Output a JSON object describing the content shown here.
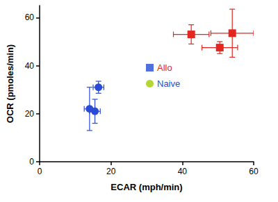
{
  "chart_data": {
    "type": "scatter",
    "x_label": "ECAR (mph/min)",
    "y_label": "OCR (pmoles/min)",
    "xlim": [
      0,
      60
    ],
    "xticks": [
      0,
      20,
      40,
      60
    ],
    "ylim": [
      0,
      65
    ],
    "yticks": [
      0,
      20,
      40,
      60
    ],
    "grid": false,
    "legend": "center",
    "series": [
      {
        "name": "Allo",
        "color": "#e3261f",
        "marker": "square",
        "x": [
          42.5,
          54,
          50.5
        ],
        "y": [
          53,
          53.5,
          47.5
        ],
        "x_err": [
          5,
          6,
          5
        ],
        "y_err": [
          4,
          10,
          2.5
        ]
      },
      {
        "name": "Naive",
        "color": "#2a4bd7",
        "marker": "circle",
        "x": [
          14,
          15.5,
          16.5
        ],
        "y": [
          22,
          21,
          31
        ],
        "x_err": [
          1.5,
          1.5,
          1.5
        ],
        "y_err": [
          9,
          5,
          2.5
        ]
      }
    ]
  }
}
